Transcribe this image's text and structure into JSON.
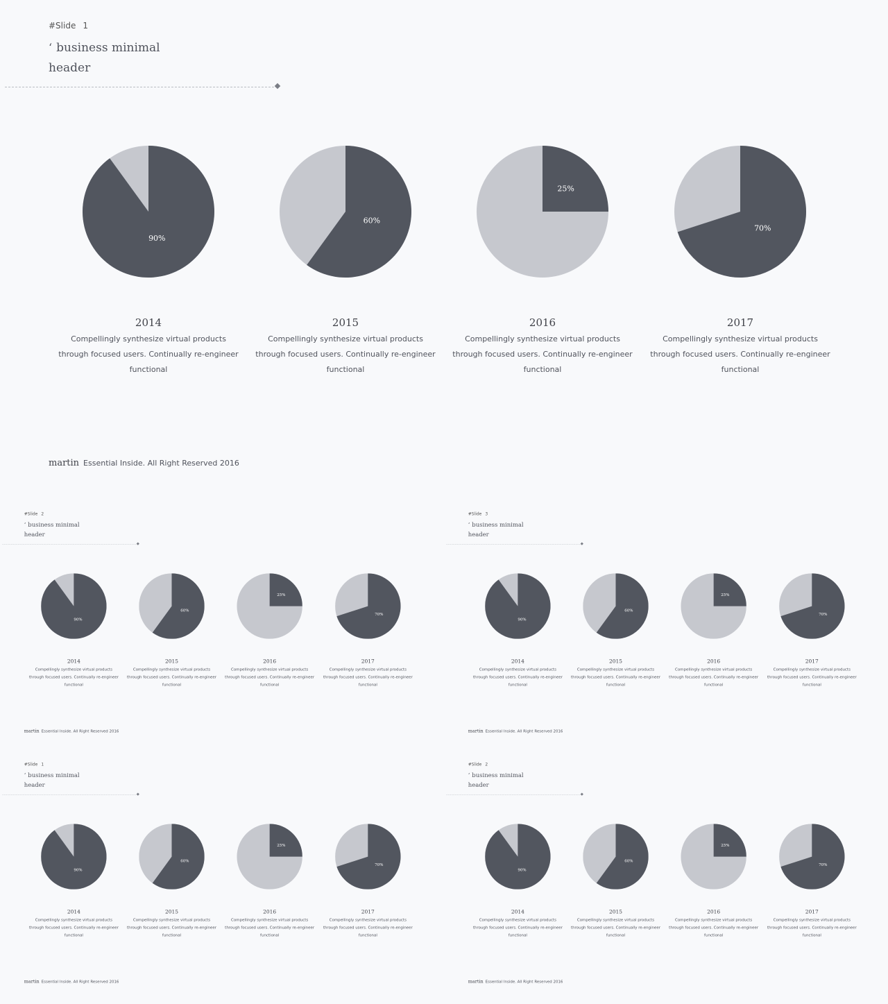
{
  "colors": {
    "dark": "#52565f",
    "light": "#c6c8ce",
    "background": "#f8f9fb"
  },
  "slides": [
    {
      "slide_label": "#Slide",
      "slide_number": "1",
      "title_mark": "‘",
      "title_line1": "business minimal",
      "title_line2": "header"
    },
    {
      "slide_label": "#Slide",
      "slide_number": "2",
      "title_mark": "‘",
      "title_line1": "business minimal",
      "title_line2": "header"
    },
    {
      "slide_label": "#Slide",
      "slide_number": "3",
      "title_mark": "‘",
      "title_line1": "business minimal",
      "title_line2": "header"
    },
    {
      "slide_label": "#Slide",
      "slide_number": "1",
      "title_mark": "‘",
      "title_line1": "business minimal",
      "title_line2": "header"
    },
    {
      "slide_label": "#Slide",
      "slide_number": "2",
      "title_mark": "‘",
      "title_line1": "business minimal",
      "title_line2": "header"
    }
  ],
  "items": [
    {
      "year": "2014",
      "description": "Compellingly synthesize virtual products through focused users. Continually re-engineer functional"
    },
    {
      "year": "2015",
      "description": "Compellingly synthesize virtual products through focused users. Continually re-engineer functional"
    },
    {
      "year": "2016",
      "description": "Compellingly synthesize virtual products through focused users. Continually re-engineer functional"
    },
    {
      "year": "2017",
      "description": "Compellingly synthesize virtual products through focused users. Continually re-engineer functional"
    }
  ],
  "chart_data": {
    "type": "pie",
    "charts": [
      {
        "category": "2014",
        "value_percent": 90,
        "label": "90%"
      },
      {
        "category": "2015",
        "value_percent": 60,
        "label": "60%"
      },
      {
        "category": "2016",
        "value_percent": 25,
        "label": "25%"
      },
      {
        "category": "2017",
        "value_percent": 70,
        "label": "70%"
      }
    ]
  },
  "footer": {
    "brand": "martin",
    "text": "Essential Inside. All Right Reserved 2016"
  }
}
